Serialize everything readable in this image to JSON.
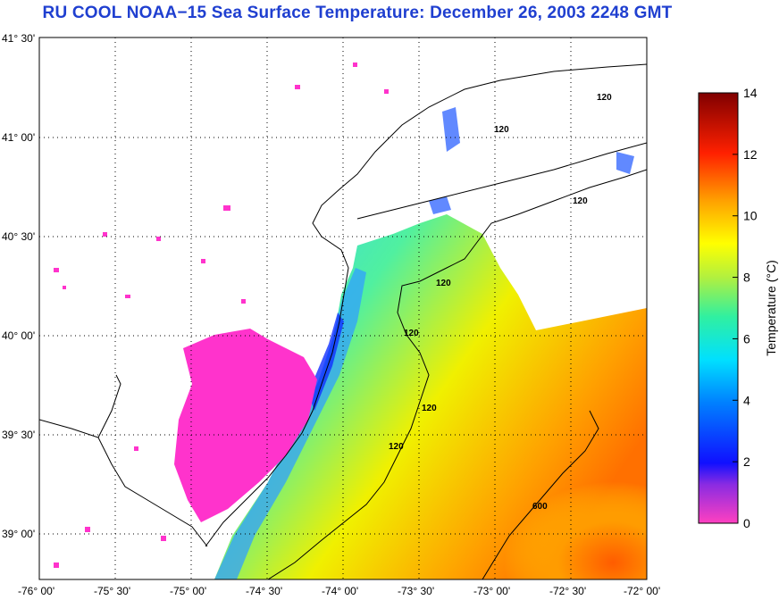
{
  "title": "RU COOL  NOAA−15  Sea Surface Temperature:  December 26, 2003 2248 GMT",
  "map": {
    "lat_labels": [
      "41° 30'",
      "41° 00'",
      "40° 30'",
      "40° 00'",
      "39° 30'",
      "39° 00'"
    ],
    "lon_labels": [
      "-76° 00'",
      "-75° 30'",
      "-75° 00'",
      "-74° 30'",
      "-74° 00'",
      "-73° 30'",
      "-73° 00'",
      "-72° 30'",
      "-72° 00'"
    ],
    "contour_labels": [
      "120",
      "120",
      "120",
      "120",
      "120",
      "120",
      "120",
      "600"
    ]
  },
  "colorbar": {
    "label": "Temperature (°C)",
    "ticks": [
      "14",
      "12",
      "10",
      "8",
      "6",
      "4",
      "2",
      "0"
    ],
    "range": [
      0,
      14
    ]
  },
  "colors": {
    "title": "#1f3fd0",
    "land_mask": "#ff33cc"
  }
}
